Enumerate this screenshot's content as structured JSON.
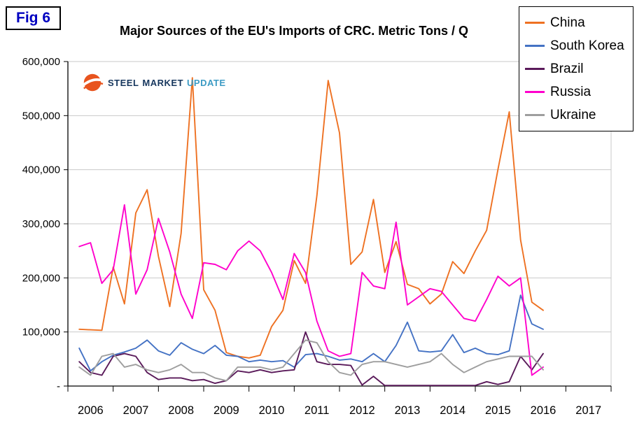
{
  "fig_label": "Fig 6",
  "logo": {
    "word1": "STEEL",
    "word2": "MARKET",
    "word3": "UPDATE"
  },
  "chart_data": {
    "type": "line",
    "title": "Major Sources of the EU's Imports of CRC. Metric Tons / Q",
    "xlabel": "",
    "ylabel": "",
    "ylim": [
      0,
      600000
    ],
    "grid": "horizontal",
    "legend_position": "top-right",
    "frequency": "quarterly",
    "x_start": "2006 Q1",
    "x_end": "2016 Q2",
    "x_axis_years": [
      "2006",
      "2007",
      "2008",
      "2009",
      "2010",
      "2011",
      "2012",
      "2013",
      "2014",
      "2015",
      "2016",
      "2017"
    ],
    "y_ticks": [
      {
        "value": 600000,
        "label": "600,000"
      },
      {
        "value": 500000,
        "label": "500,000"
      },
      {
        "value": 400000,
        "label": "400,000"
      },
      {
        "value": 300000,
        "label": "300,000"
      },
      {
        "value": 200000,
        "label": "200,000"
      },
      {
        "value": 100000,
        "label": "100,000"
      },
      {
        "value": 0,
        "label": "-"
      }
    ],
    "series": [
      {
        "name": "China",
        "color": "#EE7122",
        "values": [
          105000,
          104000,
          103000,
          220000,
          152000,
          320000,
          363000,
          240000,
          147000,
          282000,
          570000,
          178000,
          140000,
          62000,
          55000,
          52000,
          57000,
          110000,
          140000,
          232000,
          190000,
          352000,
          565000,
          468000,
          225000,
          248000,
          345000,
          210000,
          267000,
          188000,
          180000,
          152000,
          170000,
          230000,
          208000,
          250000,
          288000,
          400000,
          507000,
          270000,
          155000,
          140000
        ]
      },
      {
        "name": "South Korea",
        "color": "#4472C4",
        "values": [
          70000,
          28000,
          45000,
          57000,
          63000,
          70000,
          85000,
          65000,
          57000,
          80000,
          68000,
          60000,
          75000,
          57000,
          55000,
          45000,
          48000,
          45000,
          47000,
          35000,
          58000,
          60000,
          55000,
          48000,
          50000,
          45000,
          60000,
          45000,
          75000,
          118000,
          65000,
          63000,
          65000,
          95000,
          62000,
          70000,
          60000,
          58000,
          65000,
          168000,
          115000,
          105000
        ]
      },
      {
        "name": "Brazil",
        "color": "#5A1A5A",
        "values": [
          45000,
          25000,
          20000,
          55000,
          60000,
          55000,
          25000,
          12000,
          15000,
          15000,
          10000,
          12000,
          5000,
          10000,
          28000,
          25000,
          30000,
          25000,
          28000,
          30000,
          100000,
          45000,
          40000,
          40000,
          38000,
          2000,
          18000,
          1000,
          1000,
          1000,
          1000,
          1000,
          1000,
          1000,
          1000,
          1000,
          8000,
          3000,
          8000,
          55000,
          30000,
          60000
        ]
      },
      {
        "name": "Russia",
        "color": "#FF00CC",
        "values": [
          258000,
          265000,
          190000,
          215000,
          335000,
          170000,
          215000,
          310000,
          248000,
          170000,
          125000,
          228000,
          225000,
          215000,
          250000,
          268000,
          250000,
          210000,
          160000,
          245000,
          210000,
          120000,
          65000,
          55000,
          60000,
          210000,
          185000,
          180000,
          303000,
          150000,
          165000,
          180000,
          175000,
          150000,
          125000,
          120000,
          160000,
          203000,
          185000,
          200000,
          20000,
          35000
        ]
      },
      {
        "name": "Ukraine",
        "color": "#9E9E9E",
        "values": [
          35000,
          20000,
          55000,
          60000,
          35000,
          40000,
          30000,
          25000,
          30000,
          40000,
          25000,
          25000,
          15000,
          10000,
          35000,
          35000,
          35000,
          30000,
          35000,
          60000,
          85000,
          80000,
          45000,
          25000,
          20000,
          40000,
          45000,
          45000,
          40000,
          35000,
          40000,
          45000,
          60000,
          40000,
          25000,
          35000,
          45000,
          50000,
          55000,
          55000,
          55000,
          30000
        ]
      }
    ]
  }
}
